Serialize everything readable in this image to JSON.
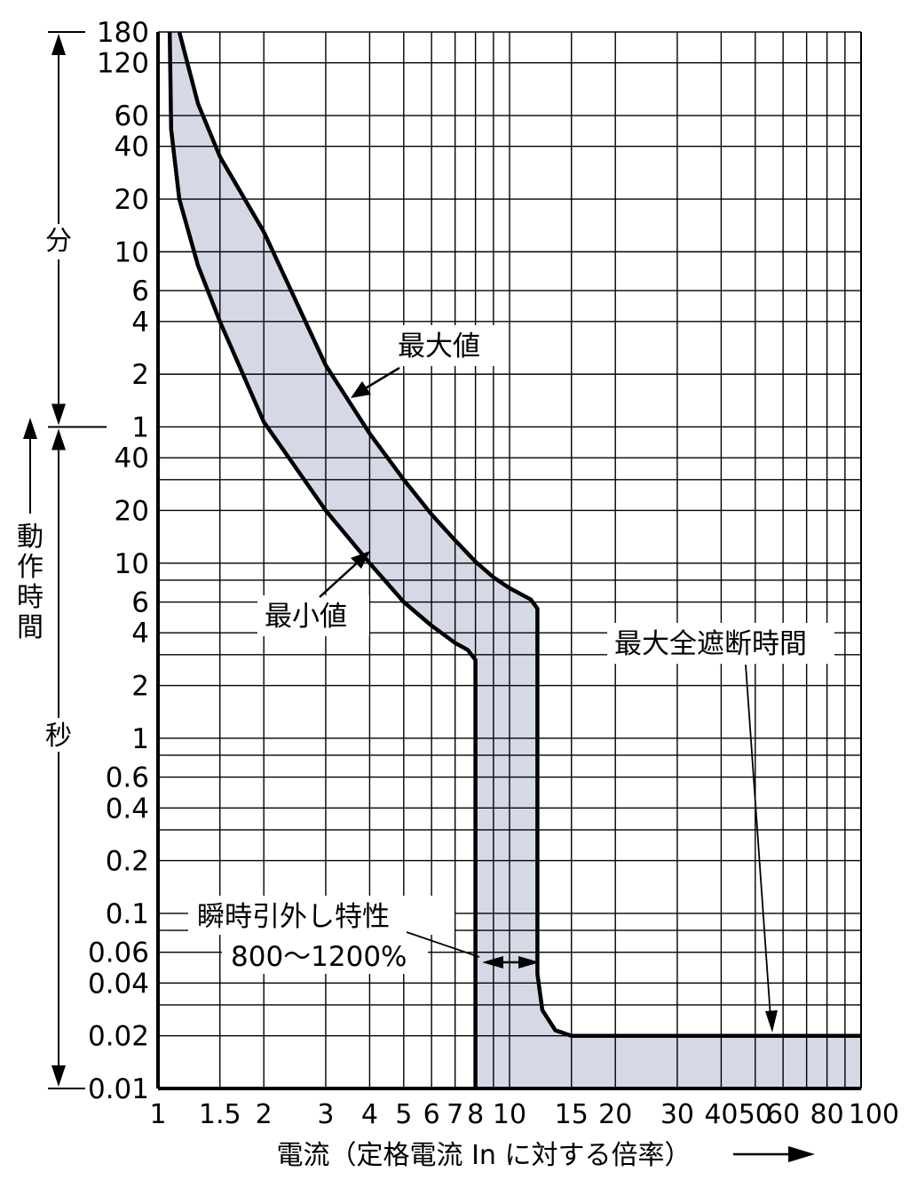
{
  "chart_data": {
    "type": "area",
    "x_scale": "log",
    "xlim": [
      1,
      100
    ],
    "x_ticks": [
      1,
      1.5,
      2,
      3,
      4,
      5,
      6,
      7,
      8,
      10,
      15,
      20,
      30,
      40,
      50,
      60,
      80,
      100
    ],
    "x_tick_labels": [
      "1",
      "1.5",
      "2",
      "3",
      "4",
      "5",
      "6",
      "7",
      "8",
      "10",
      "15",
      "20",
      "30",
      "40",
      "50",
      "60",
      "80",
      "100"
    ],
    "xlabel": "電流（定格電流 In に対する倍率）",
    "y_scale": "log",
    "ylim_seconds": [
      0.01,
      10800
    ],
    "y_ticks": [
      {
        "label": "180",
        "seconds": 10800
      },
      {
        "label": "120",
        "seconds": 7200
      },
      {
        "label": "60",
        "seconds": 3600
      },
      {
        "label": "40",
        "seconds": 2400
      },
      {
        "label": "20",
        "seconds": 1200
      },
      {
        "label": "10",
        "seconds": 600
      },
      {
        "label": "6",
        "seconds": 360
      },
      {
        "label": "4",
        "seconds": 240
      },
      {
        "label": "2",
        "seconds": 120
      },
      {
        "label": "1",
        "seconds": 60
      },
      {
        "label": "40",
        "seconds": 40
      },
      {
        "label": "20",
        "seconds": 20
      },
      {
        "label": "10",
        "seconds": 10
      },
      {
        "label": "6",
        "seconds": 6
      },
      {
        "label": "4",
        "seconds": 4
      },
      {
        "label": "2",
        "seconds": 2
      },
      {
        "label": "1",
        "seconds": 1
      },
      {
        "label": "0.6",
        "seconds": 0.6
      },
      {
        "label": "0.4",
        "seconds": 0.4
      },
      {
        "label": "0.2",
        "seconds": 0.2
      },
      {
        "label": "0.1",
        "seconds": 0.1
      },
      {
        "label": "0.06",
        "seconds": 0.06
      },
      {
        "label": "0.04",
        "seconds": 0.04
      },
      {
        "label": "0.02",
        "seconds": 0.02
      },
      {
        "label": "0.01",
        "seconds": 0.01
      }
    ],
    "y_minor_gridlines_seconds": [
      30,
      8,
      3,
      0.8,
      0.3,
      0.08,
      0.03
    ],
    "y_axis": {
      "label": "動作時間",
      "unit_minutes": "分",
      "unit_seconds": "秒"
    },
    "grid": true,
    "band_color": "#d5d9e6",
    "series": [
      {
        "name": "最大値",
        "points": [
          [
            1.15,
            10800
          ],
          [
            1.3,
            4200
          ],
          [
            1.5,
            2100
          ],
          [
            2,
            780
          ],
          [
            3,
            135
          ],
          [
            4,
            55
          ],
          [
            5,
            30
          ],
          [
            6,
            19
          ],
          [
            7,
            13.5
          ],
          [
            8,
            10.2
          ],
          [
            9,
            8.3
          ],
          [
            10,
            7.2
          ],
          [
            11.5,
            6.2
          ],
          [
            12,
            5.5
          ],
          [
            12,
            0.045
          ],
          [
            12.4,
            0.028
          ],
          [
            13.5,
            0.0215
          ],
          [
            15,
            0.02
          ],
          [
            100,
            0.02
          ]
        ]
      },
      {
        "name": "最小値",
        "points": [
          [
            1.08,
            10800
          ],
          [
            1.09,
            3000
          ],
          [
            1.15,
            1200
          ],
          [
            1.3,
            500
          ],
          [
            1.5,
            240
          ],
          [
            2,
            64
          ],
          [
            3,
            20
          ],
          [
            4,
            10
          ],
          [
            5,
            6
          ],
          [
            6,
            4.4
          ],
          [
            7,
            3.5
          ],
          [
            7.6,
            3.2
          ],
          [
            8,
            2.8
          ],
          [
            8,
            0.01
          ]
        ]
      }
    ],
    "annotations": [
      {
        "text": "最大値",
        "target": "最大値"
      },
      {
        "text": "最小値",
        "target": "最小値"
      },
      {
        "text": "最大全遮断時間",
        "target": "0.02 s line"
      },
      {
        "text": "瞬時引外し特性",
        "target": "instantaneous band"
      },
      {
        "text": "800～1200%",
        "range_x": [
          8,
          12
        ]
      }
    ]
  }
}
